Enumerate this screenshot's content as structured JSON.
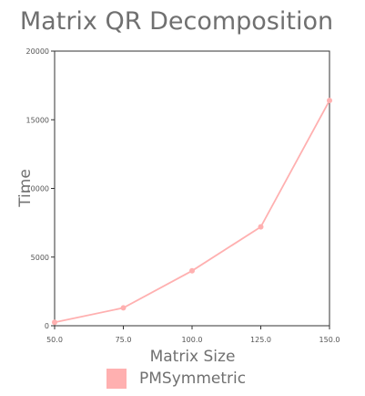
{
  "chart_data": {
    "type": "line",
    "title": "Matrix QR Decomposition",
    "xlabel": "Matrix Size",
    "ylabel": "Time",
    "x": [
      50,
      75,
      100,
      125,
      150
    ],
    "xticks": [
      50,
      75,
      100,
      125,
      150
    ],
    "xtick_labels": [
      "50.0",
      "75.0",
      "100.0",
      "125.0",
      "150.0"
    ],
    "xlim": [
      50,
      150
    ],
    "yticks": [
      0,
      5000,
      10000,
      15000,
      20000
    ],
    "ytick_labels": [
      "0",
      "5000",
      "10000",
      "15000",
      "20000"
    ],
    "ylim": [
      0,
      20000
    ],
    "grid": false,
    "legend_position": "bottom",
    "series": [
      {
        "name": "PMSymmetric",
        "color": "#ffb0b0",
        "values": [
          250,
          1300,
          4000,
          7200,
          16400
        ]
      }
    ]
  }
}
